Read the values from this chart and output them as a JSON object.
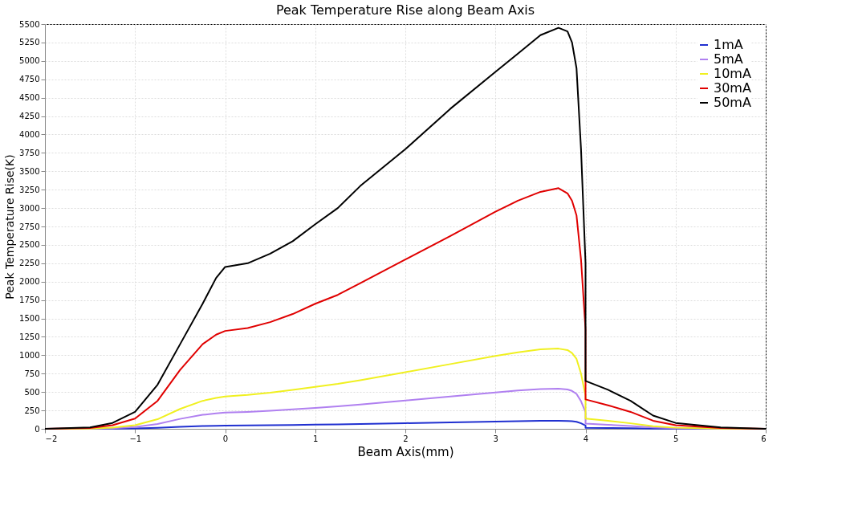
{
  "chart_data": {
    "type": "line",
    "title": "Peak Temperature Rise along Beam Axis",
    "xlabel": "Beam Axis(mm)",
    "ylabel": "Peak Temperature Rise(K)",
    "x": [
      -2,
      -1.5,
      -1.25,
      -1,
      -0.75,
      -0.5,
      -0.25,
      -0.1,
      0,
      0.25,
      0.5,
      0.75,
      1,
      1.25,
      1.5,
      2,
      2.5,
      3,
      3.25,
      3.5,
      3.7,
      3.8,
      3.85,
      3.9,
      3.95,
      4.0,
      4.0,
      4.25,
      4.5,
      4.75,
      5,
      5.5,
      6
    ],
    "series": [
      {
        "name": "1mA",
        "color": "#2030d0",
        "values": [
          0,
          0,
          2,
          5,
          13,
          27,
          38,
          42,
          44,
          46,
          49,
          53,
          57,
          61,
          66,
          77,
          88,
          99,
          104,
          108,
          109,
          107,
          103,
          95,
          75,
          45,
          14,
          11,
          8,
          4,
          2,
          0,
          0
        ]
      },
      {
        "name": "5mA",
        "color": "#b080f0",
        "values": [
          0,
          2,
          8,
          25,
          65,
          135,
          190,
          210,
          220,
          230,
          245,
          265,
          285,
          305,
          330,
          385,
          440,
          495,
          520,
          540,
          545,
          535,
          515,
          475,
          375,
          225,
          70,
          55,
          38,
          18,
          8,
          2,
          0
        ]
      },
      {
        "name": "10mA",
        "color": "#f0f020",
        "values": [
          0,
          4,
          17,
          50,
          130,
          270,
          380,
          420,
          440,
          460,
          490,
          530,
          570,
          610,
          660,
          770,
          880,
          990,
          1040,
          1080,
          1090,
          1070,
          1030,
          950,
          750,
          450,
          140,
          110,
          75,
          35,
          15,
          4,
          0
        ]
      },
      {
        "name": "30mA",
        "color": "#e00000",
        "values": [
          0,
          12,
          50,
          140,
          380,
          800,
          1150,
          1280,
          1330,
          1370,
          1450,
          1560,
          1700,
          1820,
          1980,
          2300,
          2620,
          2950,
          3100,
          3220,
          3270,
          3200,
          3100,
          2900,
          2300,
          1350,
          400,
          320,
          230,
          110,
          50,
          12,
          0
        ]
      },
      {
        "name": "50mA",
        "color": "#000000",
        "values": [
          0,
          20,
          80,
          230,
          600,
          1150,
          1700,
          2050,
          2200,
          2250,
          2380,
          2550,
          2780,
          3000,
          3300,
          3800,
          4350,
          4850,
          5100,
          5350,
          5450,
          5400,
          5250,
          4900,
          3800,
          2250,
          650,
          530,
          380,
          180,
          80,
          20,
          0
        ]
      }
    ],
    "xlim": [
      -2,
      6
    ],
    "xticks": [
      -2,
      -1,
      0,
      1,
      2,
      3,
      4,
      5,
      6
    ],
    "ylim": [
      0,
      5500
    ],
    "yticks": [
      0,
      250,
      500,
      750,
      1000,
      1250,
      1500,
      1750,
      2000,
      2250,
      2500,
      2750,
      3000,
      3250,
      3500,
      3750,
      4000,
      4250,
      4500,
      4750,
      5000,
      5250,
      5500
    ],
    "grid": true,
    "legend": "top right",
    "line_style": "solid"
  }
}
